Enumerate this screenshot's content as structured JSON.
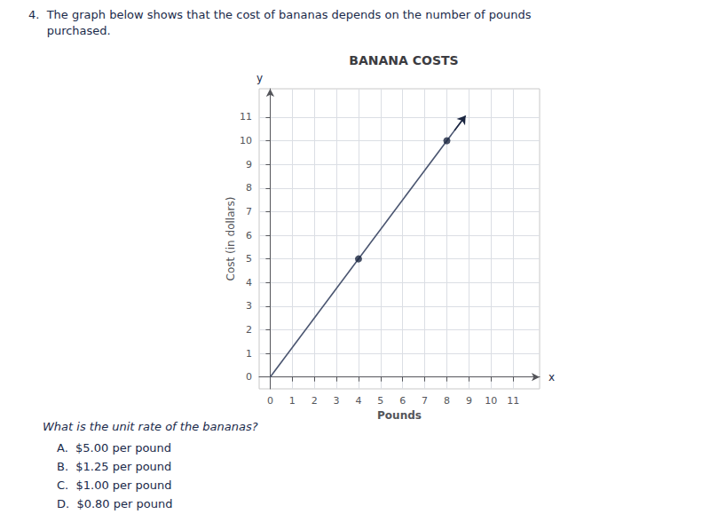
{
  "chart_data": {
    "type": "line",
    "title": "BANANA COSTS",
    "x_label": "Pounds",
    "y_label": "Cost (in dollars)",
    "question": [
      "4.  The graph below shows that the cost of bananas depends on the number of pounds",
      "     purchased."
    ],
    "prompt": "What is the unit rate of the bananas?",
    "answers": [
      "A.  $5.00 per pound",
      "B.  $1.25 per pound",
      "C.  $1.00 per pound",
      "D.  $0.80 per pound"
    ],
    "axis_letters": {
      "x": "x",
      "y": "y"
    },
    "series": [
      {
        "type": "line",
        "x": [
          0,
          8.7
        ],
        "values": [
          0,
          10.875
        ],
        "color": "#4a5570"
      },
      {
        "type": "arrow",
        "x": [
          8.35,
          8.85
        ],
        "values": [
          10.44,
          11.06
        ],
        "color": "#1a2540"
      },
      {
        "type": "scatter",
        "x": [
          4,
          8
        ],
        "values": [
          5,
          10
        ],
        "color": "#1a2540",
        "marker": "circle"
      }
    ],
    "xlim": [
      -0.5,
      12.2
    ],
    "ylim": [
      -0.5,
      12.2
    ],
    "xticks": [
      0,
      1,
      2,
      3,
      4,
      5,
      6,
      7,
      8,
      9,
      10,
      11
    ],
    "yticks": [
      0,
      1,
      2,
      3,
      4,
      5,
      6,
      7,
      8,
      9,
      10,
      11
    ],
    "grid": true
  }
}
